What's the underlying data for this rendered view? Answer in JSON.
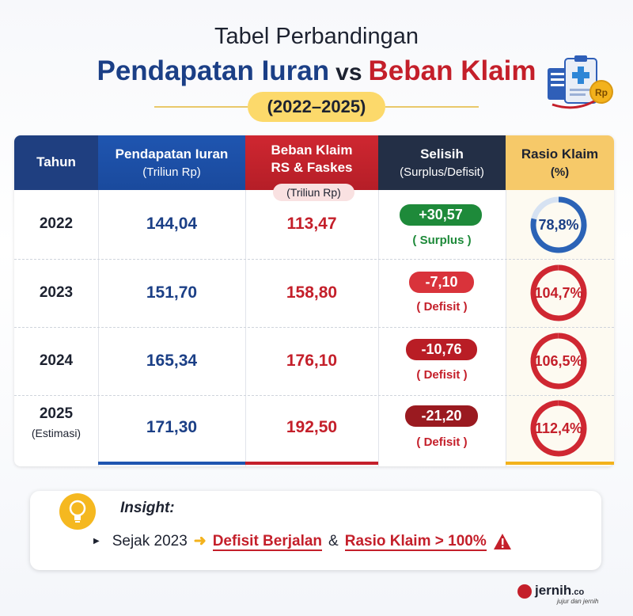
{
  "header": {
    "title_line1": "Tabel Perbandingan",
    "title_blue": "Pendapatan Iuran",
    "title_vs": "vs",
    "title_red": "Beban Klaim",
    "years": "(2022–2025)"
  },
  "table": {
    "columns": {
      "year": "Tahun",
      "pendapatan": "Pendapatan Iuran",
      "pendapatan_unit": "(Triliun Rp)",
      "beban_line1": "Beban Klaim",
      "beban_line2": "RS & Faskes",
      "beban_unit": "(Triliun Rp)",
      "selisih": "Selisih",
      "selisih_sub": "(Surplus/Defisit)",
      "rasio": "Rasio Klaim",
      "rasio_unit": "(%)"
    },
    "rows": [
      {
        "year": "2022",
        "year_note": "",
        "pendapatan": "144,04",
        "beban": "113,47",
        "selisih": "+30,57",
        "selisih_label": "( Surplus )",
        "rasio": "78,8%",
        "rasio_value": 78.8
      },
      {
        "year": "2023",
        "year_note": "",
        "pendapatan": "151,70",
        "beban": "158,80",
        "selisih": "-7,10",
        "selisih_label": "( Defisit )",
        "rasio": "104,7%",
        "rasio_value": 104.7
      },
      {
        "year": "2024",
        "year_note": "",
        "pendapatan": "165,34",
        "beban": "176,10",
        "selisih": "-10,76",
        "selisih_label": "( Defisit )",
        "rasio": "106,5%",
        "rasio_value": 106.5
      },
      {
        "year": "2025",
        "year_note": "(Estimasi)",
        "pendapatan": "171,30",
        "beban": "192,50",
        "selisih": "-21,20",
        "selisih_label": "( Defisit )",
        "rasio": "112,4%",
        "rasio_value": 112.4
      }
    ]
  },
  "insight": {
    "title": "Insight:",
    "prefix": "Sejak 2023",
    "point1": "Defisit Berjalan",
    "amp": "&",
    "point2": "Rasio Klaim > 100%"
  },
  "brand": {
    "name": "jernih",
    "suffix": ".co",
    "tagline": "jujur dan jernih"
  },
  "colors": {
    "blue": "#1b3f86",
    "red": "#c41f2a",
    "green": "#1e8a3a",
    "yellow": "#f6c969"
  },
  "icons": [
    "clipboard-icon",
    "coin-icon",
    "lightbulb-icon",
    "arrow-right-icon",
    "warning-icon"
  ]
}
